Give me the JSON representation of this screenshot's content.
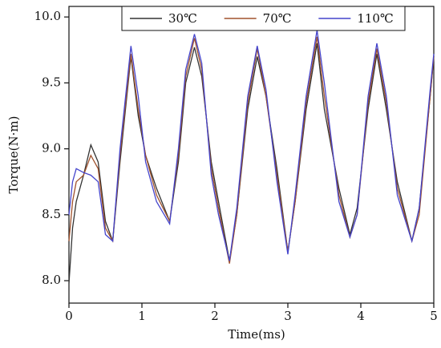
{
  "chart_data": {
    "type": "line",
    "x_label": "Time(ms)",
    "y_label": "Torque(N·m)",
    "xlim": [
      0,
      5
    ],
    "ylim": [
      7.83,
      10.08
    ],
    "xticks": [
      0,
      1,
      2,
      3,
      4,
      5
    ],
    "yticks": [
      {
        "value": 8.0,
        "label": "8.0"
      },
      {
        "value": 8.5,
        "label": "8.5"
      },
      {
        "value": 9.0,
        "label": "9.0"
      },
      {
        "value": 9.5,
        "label": "9.5"
      },
      {
        "value": 10.0,
        "label": "10.0"
      }
    ],
    "legend": "top",
    "x": [
      0,
      0.05,
      0.1,
      0.2,
      0.3,
      0.4,
      0.5,
      0.6,
      0.7,
      0.85,
      0.95,
      1.05,
      1.2,
      1.38,
      1.5,
      1.6,
      1.72,
      1.82,
      1.95,
      2.05,
      2.2,
      2.3,
      2.45,
      2.58,
      2.7,
      2.85,
      3.0,
      3.1,
      3.25,
      3.4,
      3.5,
      3.7,
      3.85,
      3.95,
      4.1,
      4.22,
      4.35,
      4.5,
      4.7,
      4.8,
      4.95,
      5.0
    ],
    "series": [
      {
        "name": "30℃",
        "color": "#333333",
        "values": [
          7.98,
          8.4,
          8.6,
          8.8,
          9.03,
          8.9,
          8.45,
          8.3,
          8.9,
          9.7,
          9.25,
          8.95,
          8.7,
          8.45,
          8.9,
          9.5,
          9.77,
          9.55,
          8.9,
          8.6,
          8.15,
          8.5,
          9.3,
          9.7,
          9.4,
          8.85,
          8.22,
          8.6,
          9.3,
          9.8,
          9.3,
          8.7,
          8.35,
          8.55,
          9.3,
          9.72,
          9.3,
          8.75,
          8.3,
          8.55,
          9.4,
          9.7
        ]
      },
      {
        "name": "70℃",
        "color": "#a0522d",
        "values": [
          8.3,
          8.6,
          8.75,
          8.8,
          8.95,
          8.85,
          8.4,
          8.3,
          8.95,
          9.72,
          9.3,
          8.95,
          8.65,
          8.45,
          8.95,
          9.55,
          9.84,
          9.6,
          8.85,
          8.55,
          8.13,
          8.5,
          9.35,
          9.76,
          9.4,
          8.8,
          8.22,
          8.6,
          9.35,
          9.85,
          9.4,
          8.65,
          8.33,
          8.5,
          9.35,
          9.76,
          9.35,
          8.7,
          8.3,
          8.5,
          9.4,
          9.7
        ]
      },
      {
        "name": "110℃",
        "color": "#4444cc",
        "values": [
          8.5,
          8.75,
          8.85,
          8.82,
          8.8,
          8.75,
          8.35,
          8.3,
          9.0,
          9.78,
          9.4,
          8.9,
          8.6,
          8.43,
          9.0,
          9.6,
          9.87,
          9.65,
          8.8,
          8.5,
          8.15,
          8.55,
          9.4,
          9.78,
          9.45,
          8.75,
          8.2,
          8.65,
          9.4,
          9.9,
          9.5,
          8.6,
          8.33,
          8.5,
          9.4,
          9.8,
          9.4,
          8.65,
          8.3,
          8.55,
          9.45,
          9.72
        ]
      }
    ]
  }
}
